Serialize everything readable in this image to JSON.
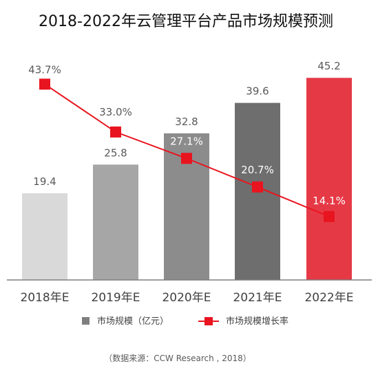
{
  "chart_data": {
    "type": "bar",
    "title": "2018-2022年云管理平台产品市场规模预测",
    "categories": [
      "2018年E",
      "2019年E",
      "2020年E",
      "2021年E",
      "2022年E"
    ],
    "series": [
      {
        "name": "市场规模（亿元）",
        "type": "bar",
        "values": [
          19.4,
          25.8,
          32.8,
          39.6,
          45.2
        ],
        "labels": [
          "19.4",
          "25.8",
          "32.8",
          "39.6",
          "45.2"
        ],
        "colors": [
          "#d9d9d9",
          "#a6a6a6",
          "#8c8c8c",
          "#6e6e6e",
          "#e63946"
        ]
      },
      {
        "name": "市场规模增长率",
        "type": "line",
        "values": [
          43.7,
          33.0,
          27.1,
          20.7,
          14.1
        ],
        "labels": [
          "43.7%",
          "33.0%",
          "27.1%",
          "20.7%",
          "14.1%"
        ],
        "color": "#e8141f"
      }
    ],
    "legend_position": "bottom",
    "grid": false
  },
  "source_text": "（数据来源：CCW Research , 2018）",
  "legend_bar_color": "#7f7f7f",
  "axis_color": "#7f7f7f"
}
